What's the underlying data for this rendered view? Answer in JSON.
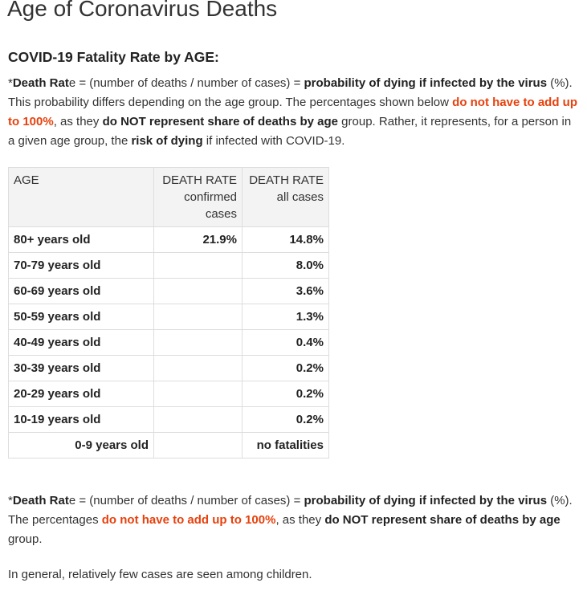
{
  "page": {
    "title": "Age of Coronavirus Deaths",
    "section_heading": "COVID-19 Fatality Rate by AGE:"
  },
  "intro": {
    "s1": "*",
    "s2": "Death Rat",
    "s3": "e = (number of deaths / number of cases) = ",
    "s4": "probability of dying if infected by the virus",
    "s5": " (%). This probability differs depending on the age group. The percentages shown below ",
    "s6": "do not have to add up to 100%",
    "s7": ", as they ",
    "s8": "do NOT represent share of deaths by age",
    "s9": " group. Rather, it represents, for a person in a given age group, the ",
    "s10": "risk of dying",
    "s11": " if infected with COVID-19."
  },
  "table": {
    "headers": {
      "age": "AGE",
      "confirmed_l1": "DEATH RATE",
      "confirmed_l2": "confirmed",
      "confirmed_l3": "cases",
      "all_l1": "DEATH RATE",
      "all_l2": "all cases"
    },
    "rows": [
      {
        "age": "80+ years old",
        "confirmed": "21.9%",
        "all": "14.8%"
      },
      {
        "age": "70-79 years old",
        "confirmed": "",
        "all": "8.0%"
      },
      {
        "age": "60-69 years old",
        "confirmed": "",
        "all": "3.6%"
      },
      {
        "age": "50-59 years old",
        "confirmed": "",
        "all": "1.3%"
      },
      {
        "age": "40-49 years old",
        "confirmed": "",
        "all": "0.4%"
      },
      {
        "age": "30-39 years old",
        "confirmed": "",
        "all": "0.2%"
      },
      {
        "age": "20-29 years old",
        "confirmed": "",
        "all": "0.2%"
      },
      {
        "age": "10-19 years old",
        "confirmed": "",
        "all": "0.2%"
      },
      {
        "age": "0-9 years old",
        "confirmed": "",
        "all": "no fatalities"
      }
    ]
  },
  "note": {
    "s1": "*",
    "s2": "Death Rat",
    "s3": "e = (number of deaths / number of cases) = ",
    "s4": "probability of dying if infected by the virus",
    "s5": " (%). The percentages ",
    "s6": "do not have to add up to 100%",
    "s7": ", as they ",
    "s8": "do NOT represent share of deaths by age",
    "s9": " group."
  },
  "closing": "In general, relatively few cases are seen among children.",
  "colors": {
    "highlight": "#e8400c",
    "text": "#333333",
    "table_header_bg": "#f3f3f3",
    "table_border": "#dddddd"
  }
}
